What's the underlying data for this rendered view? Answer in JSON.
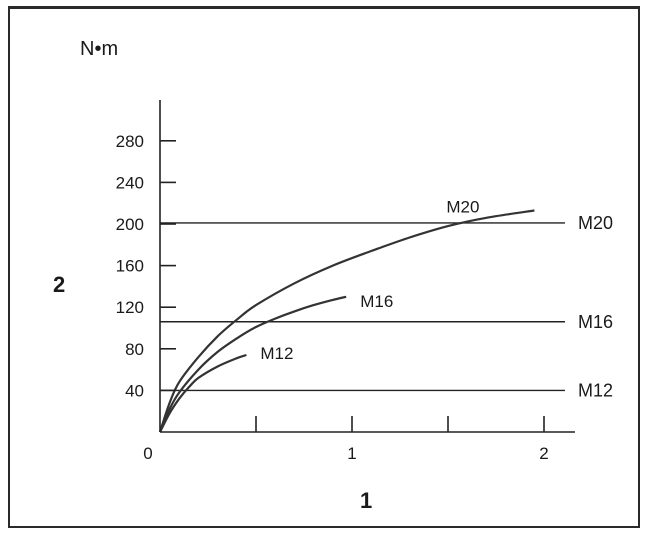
{
  "chart_data": {
    "type": "line",
    "ylabel": "N•m",
    "axis_marks": {
      "y": "2",
      "x": "1"
    },
    "x_ticks": [
      0,
      1,
      2
    ],
    "x_minor_ticks": [
      0.5,
      1.5
    ],
    "y_ticks": [
      40,
      80,
      120,
      160,
      200,
      240,
      280
    ],
    "xlim": [
      0,
      2.2
    ],
    "ylim": [
      0,
      320
    ],
    "series": [
      {
        "name": "M12",
        "x": [
          0,
          0.05,
          0.1,
          0.15,
          0.2,
          0.3,
          0.4,
          0.45
        ],
        "y": [
          0,
          18,
          32,
          43,
          52,
          63,
          71,
          74
        ]
      },
      {
        "name": "M16",
        "x": [
          0,
          0.05,
          0.1,
          0.2,
          0.3,
          0.4,
          0.5,
          0.6,
          0.7,
          0.8,
          0.9,
          0.97
        ],
        "y": [
          0,
          22,
          38,
          60,
          77,
          90,
          101,
          109,
          116,
          122,
          127,
          130
        ]
      },
      {
        "name": "M20",
        "x": [
          0,
          0.05,
          0.1,
          0.2,
          0.3,
          0.4,
          0.5,
          0.7,
          0.9,
          1.1,
          1.3,
          1.5,
          1.7,
          1.95
        ],
        "y": [
          0,
          28,
          48,
          72,
          92,
          108,
          122,
          143,
          160,
          174,
          187,
          198,
          206,
          213
        ]
      }
    ],
    "reference_lines": [
      {
        "name": "M20",
        "y": 201
      },
      {
        "name": "M16",
        "y": 106
      },
      {
        "name": "M12",
        "y": 40
      }
    ]
  }
}
